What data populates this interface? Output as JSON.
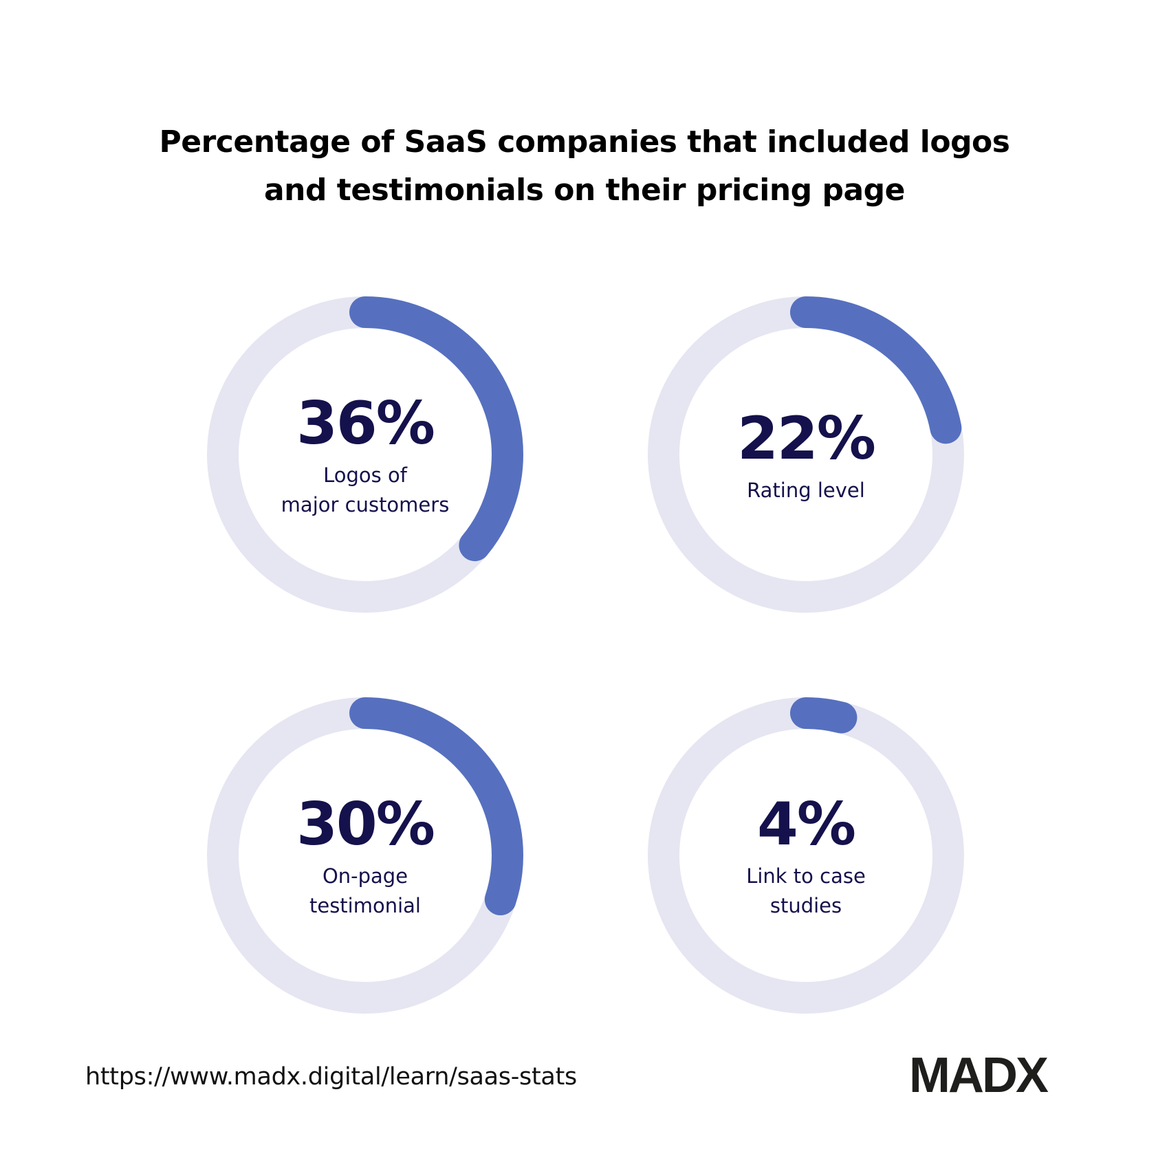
{
  "title": {
    "line1": "Percentage of SaaS companies that included logos",
    "line2": "and testimonials on their pricing page"
  },
  "colors": {
    "track": "#e6e6f2",
    "progress": "#5670bf",
    "text": "#15114c"
  },
  "stats": [
    {
      "value": "36%",
      "percent": 36,
      "label_lines": [
        "Logos of",
        "major customers"
      ]
    },
    {
      "value": "22%",
      "percent": 22,
      "label_lines": [
        "Rating level"
      ]
    },
    {
      "value": "30%",
      "percent": 30,
      "label_lines": [
        "On-page",
        "testimonial"
      ]
    },
    {
      "value": "4%",
      "percent": 4,
      "label_lines": [
        "Link to case",
        "studies"
      ]
    }
  ],
  "footer": {
    "url": "https://www.madx.digital/learn/saas-stats",
    "logo": "MADX"
  },
  "chart_data": {
    "type": "pie",
    "subtype": "donut-progress",
    "title": "Percentage of SaaS companies that included logos and testimonials on their pricing page",
    "categories": [
      "Logos of major customers",
      "Rating level",
      "On-page testimonial",
      "Link to case studies"
    ],
    "values": [
      36,
      22,
      30,
      4
    ],
    "unit": "%",
    "range": [
      0,
      100
    ],
    "layout": "2x2 grid of progress rings, arc starts at 12 o'clock and runs clockwise",
    "legend": "none"
  }
}
